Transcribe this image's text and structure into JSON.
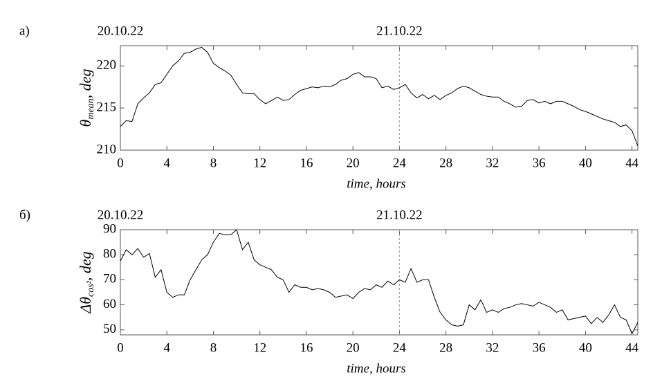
{
  "chart_data": [
    {
      "type": "line",
      "panel": "а)",
      "ylabel": {
        "symbol": "θ",
        "subscript": "mean",
        "unit": ", deg"
      },
      "xlabel": "time, hours",
      "annotations": [
        {
          "text": "20.10.22",
          "x": 0
        },
        {
          "text": "21.10.22",
          "x": 24
        }
      ],
      "vline_x": 24,
      "xlim": [
        0,
        44.5
      ],
      "ylim": [
        210,
        222.4
      ],
      "xticks": [
        0,
        4,
        8,
        12,
        16,
        20,
        24,
        28,
        32,
        36,
        40,
        44
      ],
      "yticks": [
        210,
        215,
        220
      ],
      "series": [
        {
          "color": "#000000",
          "x": [
            0,
            0.5,
            1,
            1.5,
            2,
            2.5,
            3,
            3.5,
            4,
            4.5,
            5,
            5.5,
            6,
            6.5,
            7,
            7.5,
            8,
            8.5,
            9,
            9.5,
            10,
            10.5,
            11,
            11.5,
            12,
            12.5,
            13,
            13.5,
            14,
            14.5,
            15,
            15.5,
            16,
            16.5,
            17,
            17.5,
            18,
            18.5,
            19,
            19.5,
            20,
            20.5,
            21,
            21.5,
            22,
            22.5,
            23,
            23.5,
            24,
            24.5,
            25,
            25.5,
            26,
            26.5,
            27,
            27.5,
            28,
            28.5,
            29,
            29.5,
            30,
            30.5,
            31,
            31.5,
            32,
            32.5,
            33,
            33.5,
            34,
            34.5,
            35,
            35.5,
            36,
            36.5,
            37,
            37.5,
            38,
            38.5,
            39,
            39.5,
            40,
            40.5,
            41,
            41.5,
            42,
            42.5,
            43,
            43.5,
            44,
            44.5
          ],
          "values": [
            212.8,
            213.5,
            213.4,
            215.5,
            216.2,
            216.8,
            217.8,
            218.0,
            219.0,
            220.0,
            220.6,
            221.5,
            221.6,
            222.0,
            222.2,
            221.6,
            220.3,
            219.8,
            219.4,
            218.9,
            217.8,
            216.8,
            216.7,
            216.7,
            216.0,
            215.5,
            215.9,
            216.3,
            215.9,
            216.0,
            216.6,
            217.1,
            217.3,
            217.5,
            217.4,
            217.6,
            217.5,
            217.8,
            218.3,
            218.5,
            219.0,
            219.2,
            218.7,
            218.7,
            218.5,
            217.4,
            217.6,
            217.2,
            217.4,
            217.8,
            216.8,
            216.2,
            216.6,
            216.1,
            216.5,
            216.0,
            216.5,
            216.8,
            217.3,
            217.6,
            217.4,
            217.0,
            216.6,
            216.4,
            216.3,
            216.3,
            215.8,
            215.5,
            215.1,
            215.2,
            215.9,
            216.0,
            215.6,
            215.8,
            215.5,
            215.8,
            215.8,
            215.5,
            215.2,
            214.8,
            214.6,
            214.3,
            214.0,
            213.7,
            213.5,
            213.3,
            212.8,
            213.0,
            212.3,
            210.5
          ]
        }
      ]
    },
    {
      "type": "line",
      "panel": "б)",
      "ylabel": {
        "symbol": "Δθ",
        "subscript": "cos²",
        "unit": ", deg"
      },
      "xlabel": "time, hours",
      "annotations": [
        {
          "text": "20.10.22",
          "x": 0
        },
        {
          "text": "21.10.22",
          "x": 24
        }
      ],
      "vline_x": 24,
      "xlim": [
        0,
        44.5
      ],
      "ylim": [
        48,
        90
      ],
      "xticks": [
        0,
        4,
        8,
        12,
        16,
        20,
        24,
        28,
        32,
        36,
        40,
        44
      ],
      "yticks": [
        50,
        60,
        70,
        80,
        90
      ],
      "series": [
        {
          "color": "#000000",
          "x": [
            0,
            0.5,
            1,
            1.5,
            2,
            2.5,
            3,
            3.5,
            4,
            4.5,
            5,
            5.5,
            6,
            6.5,
            7,
            7.5,
            8,
            8.5,
            9,
            9.5,
            10,
            10.5,
            11,
            11.5,
            12,
            12.5,
            13,
            13.5,
            14,
            14.5,
            15,
            15.5,
            16,
            16.5,
            17,
            17.5,
            18,
            18.5,
            19,
            19.5,
            20,
            20.5,
            21,
            21.5,
            22,
            22.5,
            23,
            23.5,
            24,
            24.5,
            25,
            25.5,
            26,
            26.5,
            27,
            27.5,
            28,
            28.5,
            29,
            29.5,
            30,
            30.5,
            31,
            31.5,
            32,
            32.5,
            33,
            33.5,
            34,
            34.5,
            35,
            35.5,
            36,
            36.5,
            37,
            37.5,
            38,
            38.5,
            39,
            39.5,
            40,
            40.5,
            41,
            41.5,
            42,
            42.5,
            43,
            43.5,
            44,
            44.5
          ],
          "values": [
            77.5,
            82,
            80,
            82.5,
            79,
            80.5,
            71,
            74,
            65,
            63,
            64,
            64,
            70,
            74,
            78,
            80,
            85,
            88.5,
            88,
            88,
            90,
            82,
            85,
            78,
            76,
            75,
            74,
            71,
            70,
            65,
            68,
            67,
            67,
            66,
            66.5,
            66,
            65,
            63,
            63.5,
            64,
            62.5,
            65,
            66.5,
            66,
            68,
            67,
            69.5,
            68,
            70,
            69,
            74.5,
            69,
            70,
            70,
            63,
            57,
            54,
            52,
            51.5,
            52,
            60,
            58,
            62,
            57,
            58,
            57,
            58.5,
            59,
            60,
            60.5,
            60,
            59.5,
            61,
            60,
            59,
            57,
            58,
            54,
            54.5,
            55,
            55.5,
            52.5,
            55,
            53,
            56,
            60,
            55,
            54,
            48.5,
            53
          ]
        }
      ]
    }
  ]
}
